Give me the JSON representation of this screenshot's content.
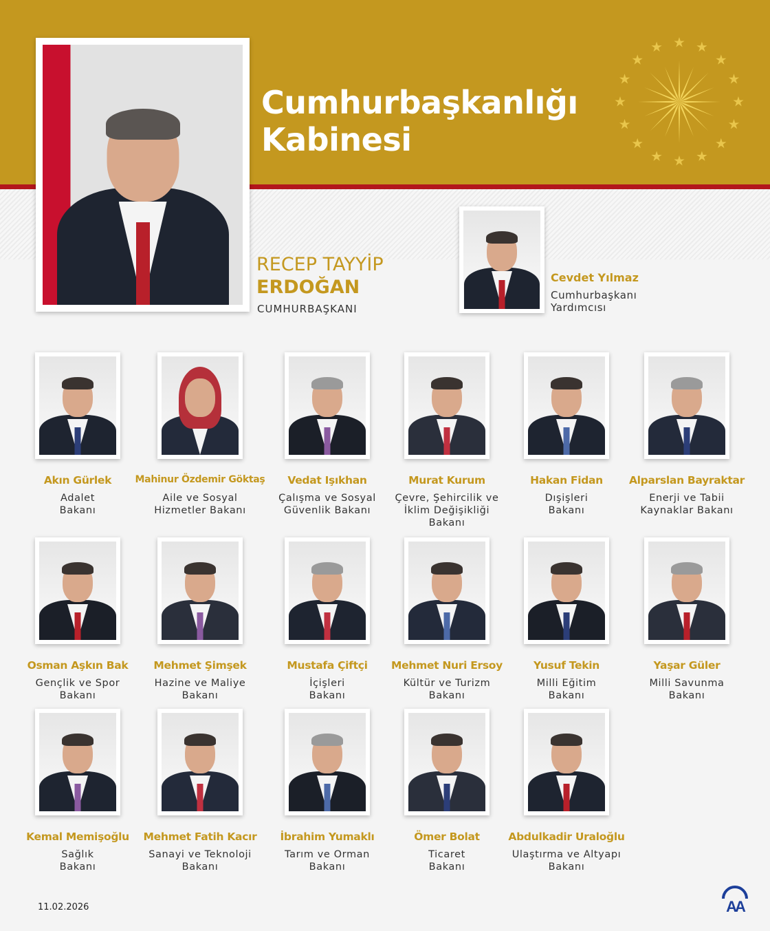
{
  "header": {
    "title": "Cumhurbaşkanlığı\nKabinesi",
    "color": "#c4981f",
    "accent_red": "#b3161c"
  },
  "president": {
    "name_line1": "RECEP TAYYİP",
    "name_line2": "ERDOĞAN",
    "role": "CUMHURBAŞKANI"
  },
  "vice_president": {
    "name": "Cevdet Yılmaz",
    "role": "Cumhurbaşkanı\nYardımcısı"
  },
  "ministers": [
    {
      "name": "Akın Gürlek",
      "role": "Adalet\nBakanı"
    },
    {
      "name": "Mahinur Özdemir Göktaş",
      "role": "Aile ve Sosyal\nHizmetler Bakanı"
    },
    {
      "name": "Vedat Işıkhan",
      "role": "Çalışma ve Sosyal\nGüvenlik Bakanı"
    },
    {
      "name": "Murat Kurum",
      "role": "Çevre, Şehircilik ve\nİklim Değişikliği\nBakanı"
    },
    {
      "name": "Hakan Fidan",
      "role": "Dışişleri\nBakanı"
    },
    {
      "name": "Alparslan Bayraktar",
      "role": "Enerji ve Tabii\nKaynaklar Bakanı"
    },
    {
      "name": "Osman Aşkın Bak",
      "role": "Gençlik ve Spor\nBakanı"
    },
    {
      "name": "Mehmet Şimşek",
      "role": "Hazine ve Maliye\nBakanı"
    },
    {
      "name": "Mustafa Çiftçi",
      "role": "İçişleri\nBakanı"
    },
    {
      "name": "Mehmet Nuri Ersoy",
      "role": "Kültür ve Turizm\nBakanı"
    },
    {
      "name": "Yusuf Tekin",
      "role": "Milli Eğitim\nBakanı"
    },
    {
      "name": "Yaşar Güler",
      "role": "Milli Savunma\nBakanı"
    },
    {
      "name": "Kemal Memişoğlu",
      "role": "Sağlık\nBakanı"
    },
    {
      "name": "Mehmet Fatih Kacır",
      "role": "Sanayi ve Teknoloji\nBakanı"
    },
    {
      "name": "İbrahim Yumaklı",
      "role": "Tarım ve Orman\nBakanı"
    },
    {
      "name": "Ömer Bolat",
      "role": "Ticaret\nBakanı"
    },
    {
      "name": "Abdulkadir Uraloğlu",
      "role": "Ulaştırma ve Altyapı\nBakanı"
    }
  ],
  "footer": {
    "date": "11.02.2026",
    "logo": "AA"
  }
}
